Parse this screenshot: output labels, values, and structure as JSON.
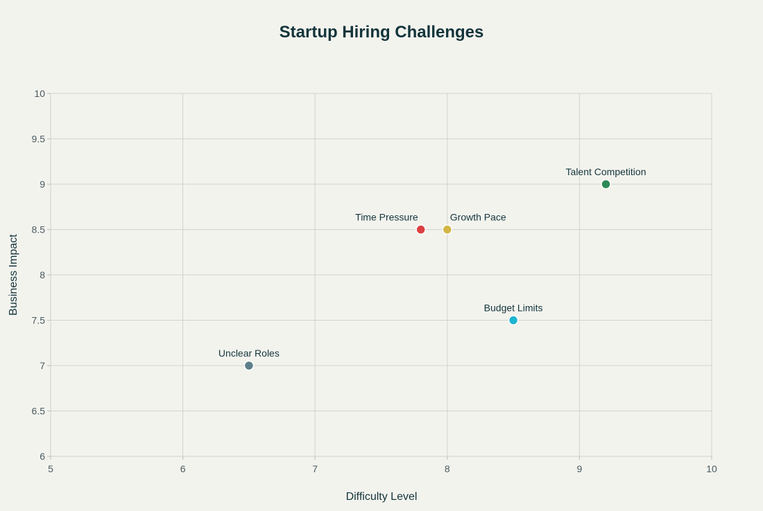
{
  "chart_data": {
    "type": "scatter",
    "title": "Startup Hiring Challenges",
    "xlabel": "Difficulty Level",
    "ylabel": "Business Impact",
    "xlim": [
      5,
      10
    ],
    "ylim": [
      6,
      10
    ],
    "xticks": [
      "5",
      "6",
      "7",
      "8",
      "9",
      "10"
    ],
    "yticks": [
      "6",
      "6.5",
      "7",
      "7.5",
      "8",
      "8.5",
      "9",
      "9.5",
      "10"
    ],
    "grid": true,
    "points": [
      {
        "label": "Talent Competition",
        "x": 9.2,
        "y": 9,
        "color": "#2e8b57"
      },
      {
        "label": "Time Pressure",
        "x": 7.8,
        "y": 8.5,
        "color": "#dc3f42"
      },
      {
        "label": "Growth Pace",
        "x": 8.0,
        "y": 8.5,
        "color": "#d3b547"
      },
      {
        "label": "Budget Limits",
        "x": 8.5,
        "y": 7.5,
        "color": "#1fb4cf"
      },
      {
        "label": "Unclear Roles",
        "x": 6.5,
        "y": 7,
        "color": "#5d7f89"
      }
    ]
  }
}
